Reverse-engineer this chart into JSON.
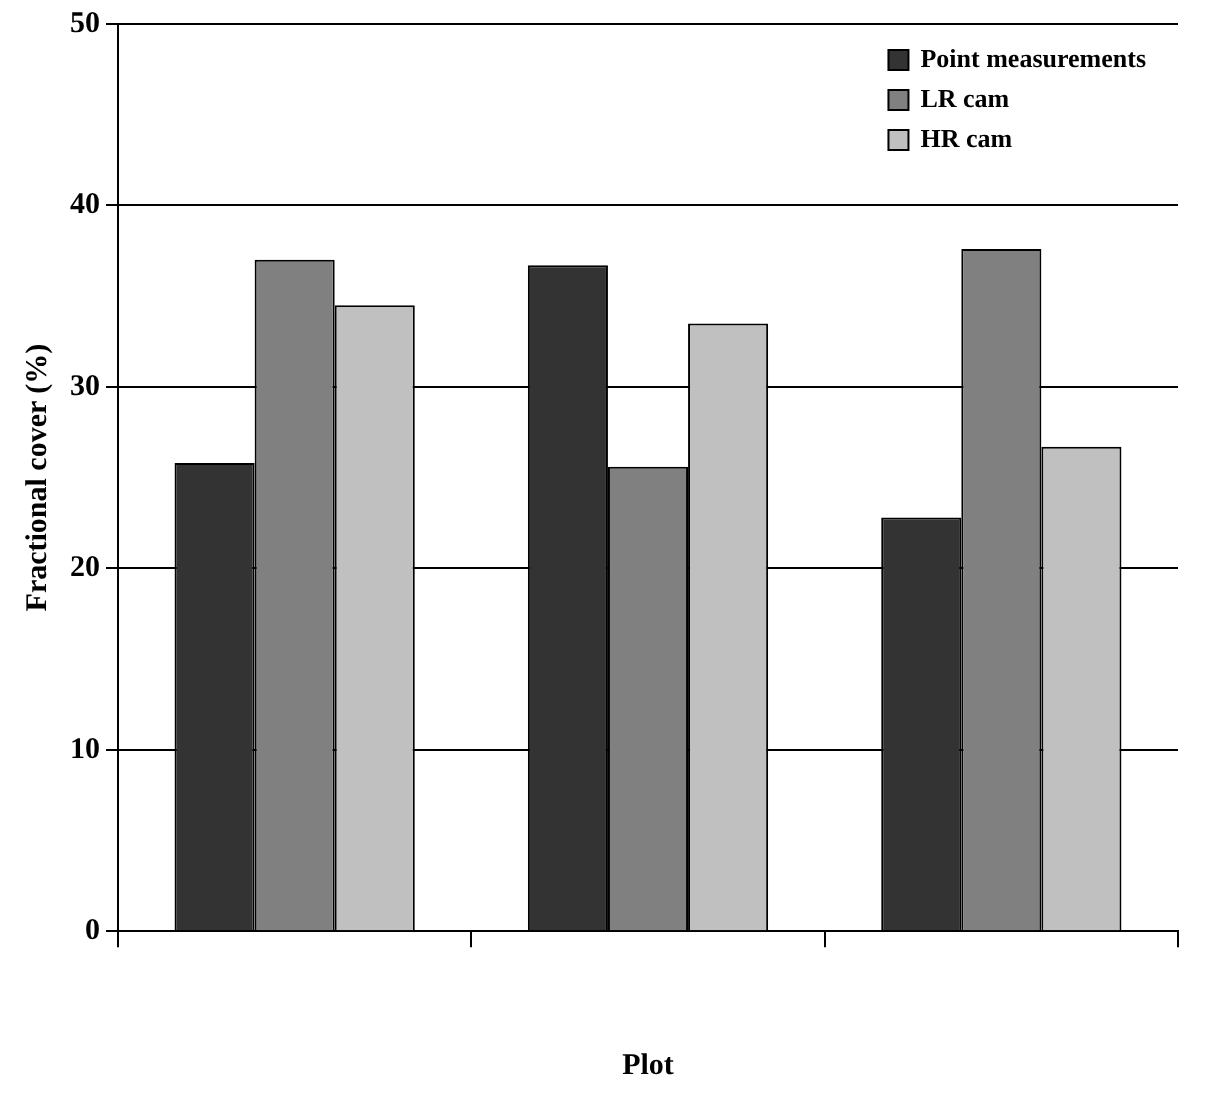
{
  "chart_data": {
    "type": "bar",
    "xlabel": "Plot",
    "ylabel": "Fractional cover (%)",
    "categories": [
      null,
      null,
      null
    ],
    "series": [
      {
        "name": "Point measurements",
        "color": "#333333",
        "values": [
          25.8,
          36.7,
          22.8
        ]
      },
      {
        "name": "LR cam",
        "color": "#808080",
        "values": [
          37.0,
          25.6,
          37.6
        ]
      },
      {
        "name": "HR cam",
        "color": "#c0c0c0",
        "values": [
          34.5,
          33.5,
          26.7
        ]
      }
    ],
    "ylim": [
      0,
      50
    ],
    "yticks": [
      0,
      10,
      20,
      30,
      40,
      50
    ],
    "grid": "y",
    "legend": "top right"
  }
}
